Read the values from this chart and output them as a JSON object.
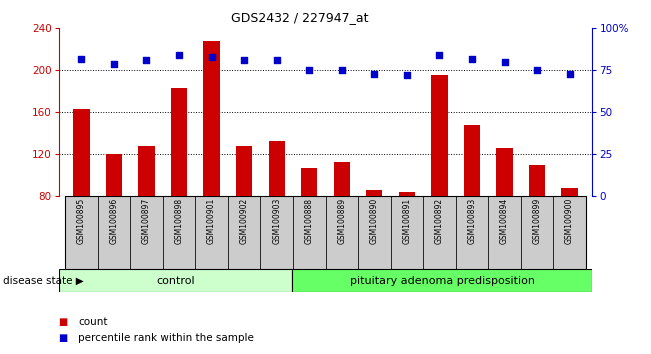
{
  "title": "GDS2432 / 227947_at",
  "categories": [
    "GSM100895",
    "GSM100896",
    "GSM100897",
    "GSM100898",
    "GSM100901",
    "GSM100902",
    "GSM100903",
    "GSM100888",
    "GSM100889",
    "GSM100890",
    "GSM100891",
    "GSM100892",
    "GSM100893",
    "GSM100894",
    "GSM100899",
    "GSM100900"
  ],
  "count_values": [
    163,
    120,
    128,
    183,
    228,
    128,
    133,
    107,
    113,
    86,
    84,
    196,
    148,
    126,
    110,
    88
  ],
  "percentile_values": [
    82,
    79,
    81,
    84,
    83,
    81,
    81,
    75,
    75,
    73,
    72,
    84,
    82,
    80,
    75,
    73
  ],
  "control_count": 7,
  "disease_count": 9,
  "control_label": "control",
  "disease_label": "pituitary adenoma predisposition",
  "disease_state_label": "disease state",
  "ylim_left": [
    80,
    240
  ],
  "ylim_right": [
    0,
    100
  ],
  "yticks_left": [
    80,
    120,
    160,
    200,
    240
  ],
  "yticks_right": [
    0,
    25,
    50,
    75,
    100
  ],
  "yticklabels_right": [
    "0",
    "25",
    "50",
    "75",
    "100%"
  ],
  "bar_color": "#cc0000",
  "scatter_color": "#0000cc",
  "control_bg": "#ccffcc",
  "disease_bg": "#66ff66",
  "bar_width": 0.5,
  "legend_count_label": "count",
  "legend_percentile_label": "percentile rank within the sample"
}
